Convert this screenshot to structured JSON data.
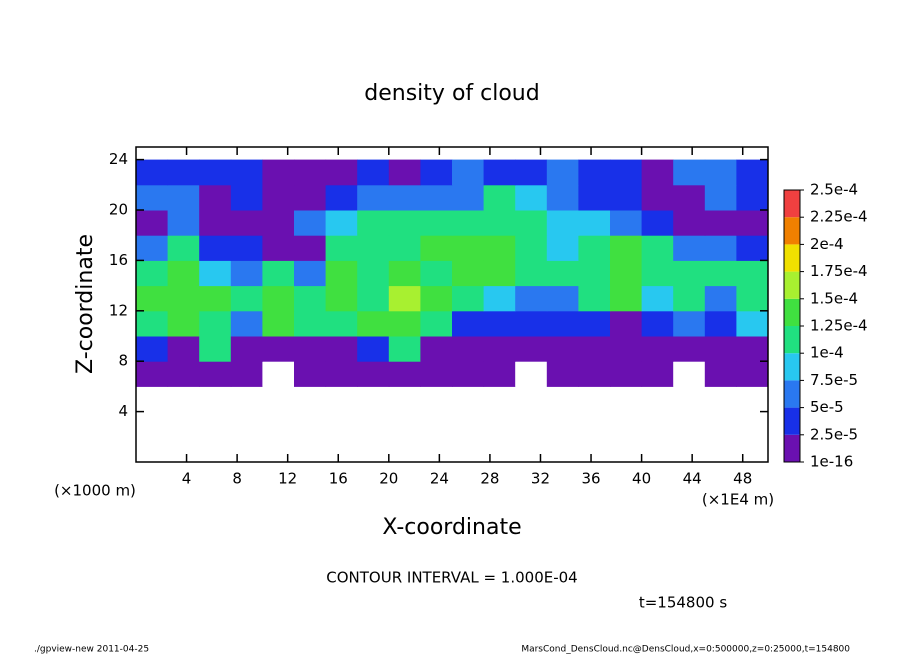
{
  "chart_data": {
    "type": "heatmap",
    "title": "density of cloud",
    "x_label": "X-coordinate",
    "y_label": "Z-coordinate",
    "x_unit": "(×1E4 m)",
    "y_unit": "(×1000 m)",
    "x": [
      1.25,
      3.75,
      6.25,
      8.75,
      11.25,
      13.75,
      16.25,
      18.75,
      21.25,
      23.75,
      26.25,
      28.75,
      31.25,
      33.75,
      36.25,
      38.75,
      41.25,
      43.75,
      46.25,
      48.75
    ],
    "z": [
      7,
      9,
      11,
      13,
      15,
      17,
      19,
      21,
      23
    ],
    "values": [
      [
        1e-05,
        1e-05,
        5e-06,
        1e-05,
        0,
        1e-05,
        1e-05,
        1e-05,
        1e-05,
        1e-05,
        1e-05,
        1e-05,
        0,
        1e-05,
        1e-05,
        1e-05,
        1e-05,
        0,
        1e-05,
        1e-05
      ],
      [
        3e-05,
        1e-05,
        0.00011,
        1e-05,
        1e-05,
        1e-05,
        1e-05,
        3e-05,
        0.00011,
        1e-05,
        1e-05,
        1e-05,
        1e-05,
        1e-05,
        1e-05,
        1e-05,
        1e-05,
        1e-05,
        1e-05,
        1e-05
      ],
      [
        0.00012,
        0.00013,
        0.00012,
        6e-05,
        0.00013,
        0.00012,
        0.00011,
        0.00013,
        0.00014,
        0.00011,
        4e-05,
        3e-05,
        3e-05,
        3e-05,
        3e-05,
        2e-05,
        4e-05,
        5e-05,
        3e-05,
        8e-05
      ],
      [
        0.00013,
        0.00014,
        0.00013,
        0.00011,
        0.00014,
        0.0001,
        0.00013,
        0.00012,
        0.00016,
        0.00013,
        0.00012,
        9e-05,
        6e-05,
        6e-05,
        0.00012,
        0.00013,
        8e-05,
        0.00011,
        6e-05,
        0.00012
      ],
      [
        0.00012,
        0.00014,
        9e-05,
        6e-05,
        0.00012,
        5e-05,
        0.00013,
        0.00012,
        0.00013,
        0.00012,
        0.00013,
        0.00014,
        0.00011,
        0.0001,
        0.00012,
        0.00013,
        0.00011,
        0.00011,
        0.0001,
        0.00012
      ],
      [
        5e-05,
        0.00012,
        3e-05,
        3e-05,
        1e-05,
        1e-05,
        0.00011,
        0.00011,
        0.00012,
        0.00013,
        0.00013,
        0.00013,
        0.0001,
        8e-05,
        0.00012,
        0.00013,
        0.0001,
        6e-05,
        5e-05,
        4e-05
      ],
      [
        1e-05,
        5e-05,
        1e-05,
        1e-05,
        1e-05,
        6e-05,
        8e-05,
        0.00011,
        0.00011,
        0.00011,
        0.0001,
        0.00012,
        0.0001,
        8e-05,
        9e-05,
        6e-05,
        3e-05,
        1e-05,
        1e-05,
        1e-05
      ],
      [
        5e-05,
        5e-05,
        1e-05,
        3e-05,
        1e-05,
        1e-05,
        4e-05,
        6e-05,
        5e-05,
        7e-05,
        5e-05,
        0.0001,
        8e-05,
        6e-05,
        3e-05,
        3e-05,
        2e-05,
        1e-05,
        6e-05,
        4e-05
      ],
      [
        4e-05,
        4e-05,
        3e-05,
        3e-05,
        1e-05,
        2e-05,
        2e-05,
        3e-05,
        1e-05,
        3e-05,
        6e-05,
        4e-05,
        3e-05,
        5e-05,
        4e-05,
        4e-05,
        1e-05,
        5e-05,
        5e-05,
        4e-05
      ]
    ],
    "xlim": [
      0,
      50
    ],
    "ylim": [
      0,
      25
    ],
    "xticks": [
      4,
      8,
      12,
      16,
      20,
      24,
      28,
      32,
      36,
      40,
      44,
      48
    ],
    "yticks": [
      4,
      8,
      12,
      16,
      20,
      24
    ],
    "levels": [
      {
        "value": 1e-16,
        "label": "1e-16"
      },
      {
        "value": 2.5e-05,
        "label": "2.5e-5"
      },
      {
        "value": 5e-05,
        "label": "5e-5"
      },
      {
        "value": 7.5e-05,
        "label": "7.5e-5"
      },
      {
        "value": 0.0001,
        "label": "1e-4"
      },
      {
        "value": 0.000125,
        "label": "1.25e-4"
      },
      {
        "value": 0.00015,
        "label": "1.5e-4"
      },
      {
        "value": 0.000175,
        "label": "1.75e-4"
      },
      {
        "value": 0.0002,
        "label": "2e-4"
      },
      {
        "value": 0.000225,
        "label": "2.25e-4"
      },
      {
        "value": 0.00025,
        "label": "2.5e-4"
      }
    ],
    "colors": [
      "#6a10b0",
      "#1830e8",
      "#2a78f0",
      "#28c8f0",
      "#20e080",
      "#40e040",
      "#a8f030",
      "#f0e000",
      "#f08000",
      "#f04040"
    ],
    "contour_note": "CONTOUR INTERVAL = 1.000E-04",
    "time_note": "t=154800 s",
    "footer_left": "./gpview-new  2011-04-25",
    "footer_right": "MarsCond_DensCloud.nc@DensCloud,x=0:500000,z=0:25000,t=154800"
  }
}
